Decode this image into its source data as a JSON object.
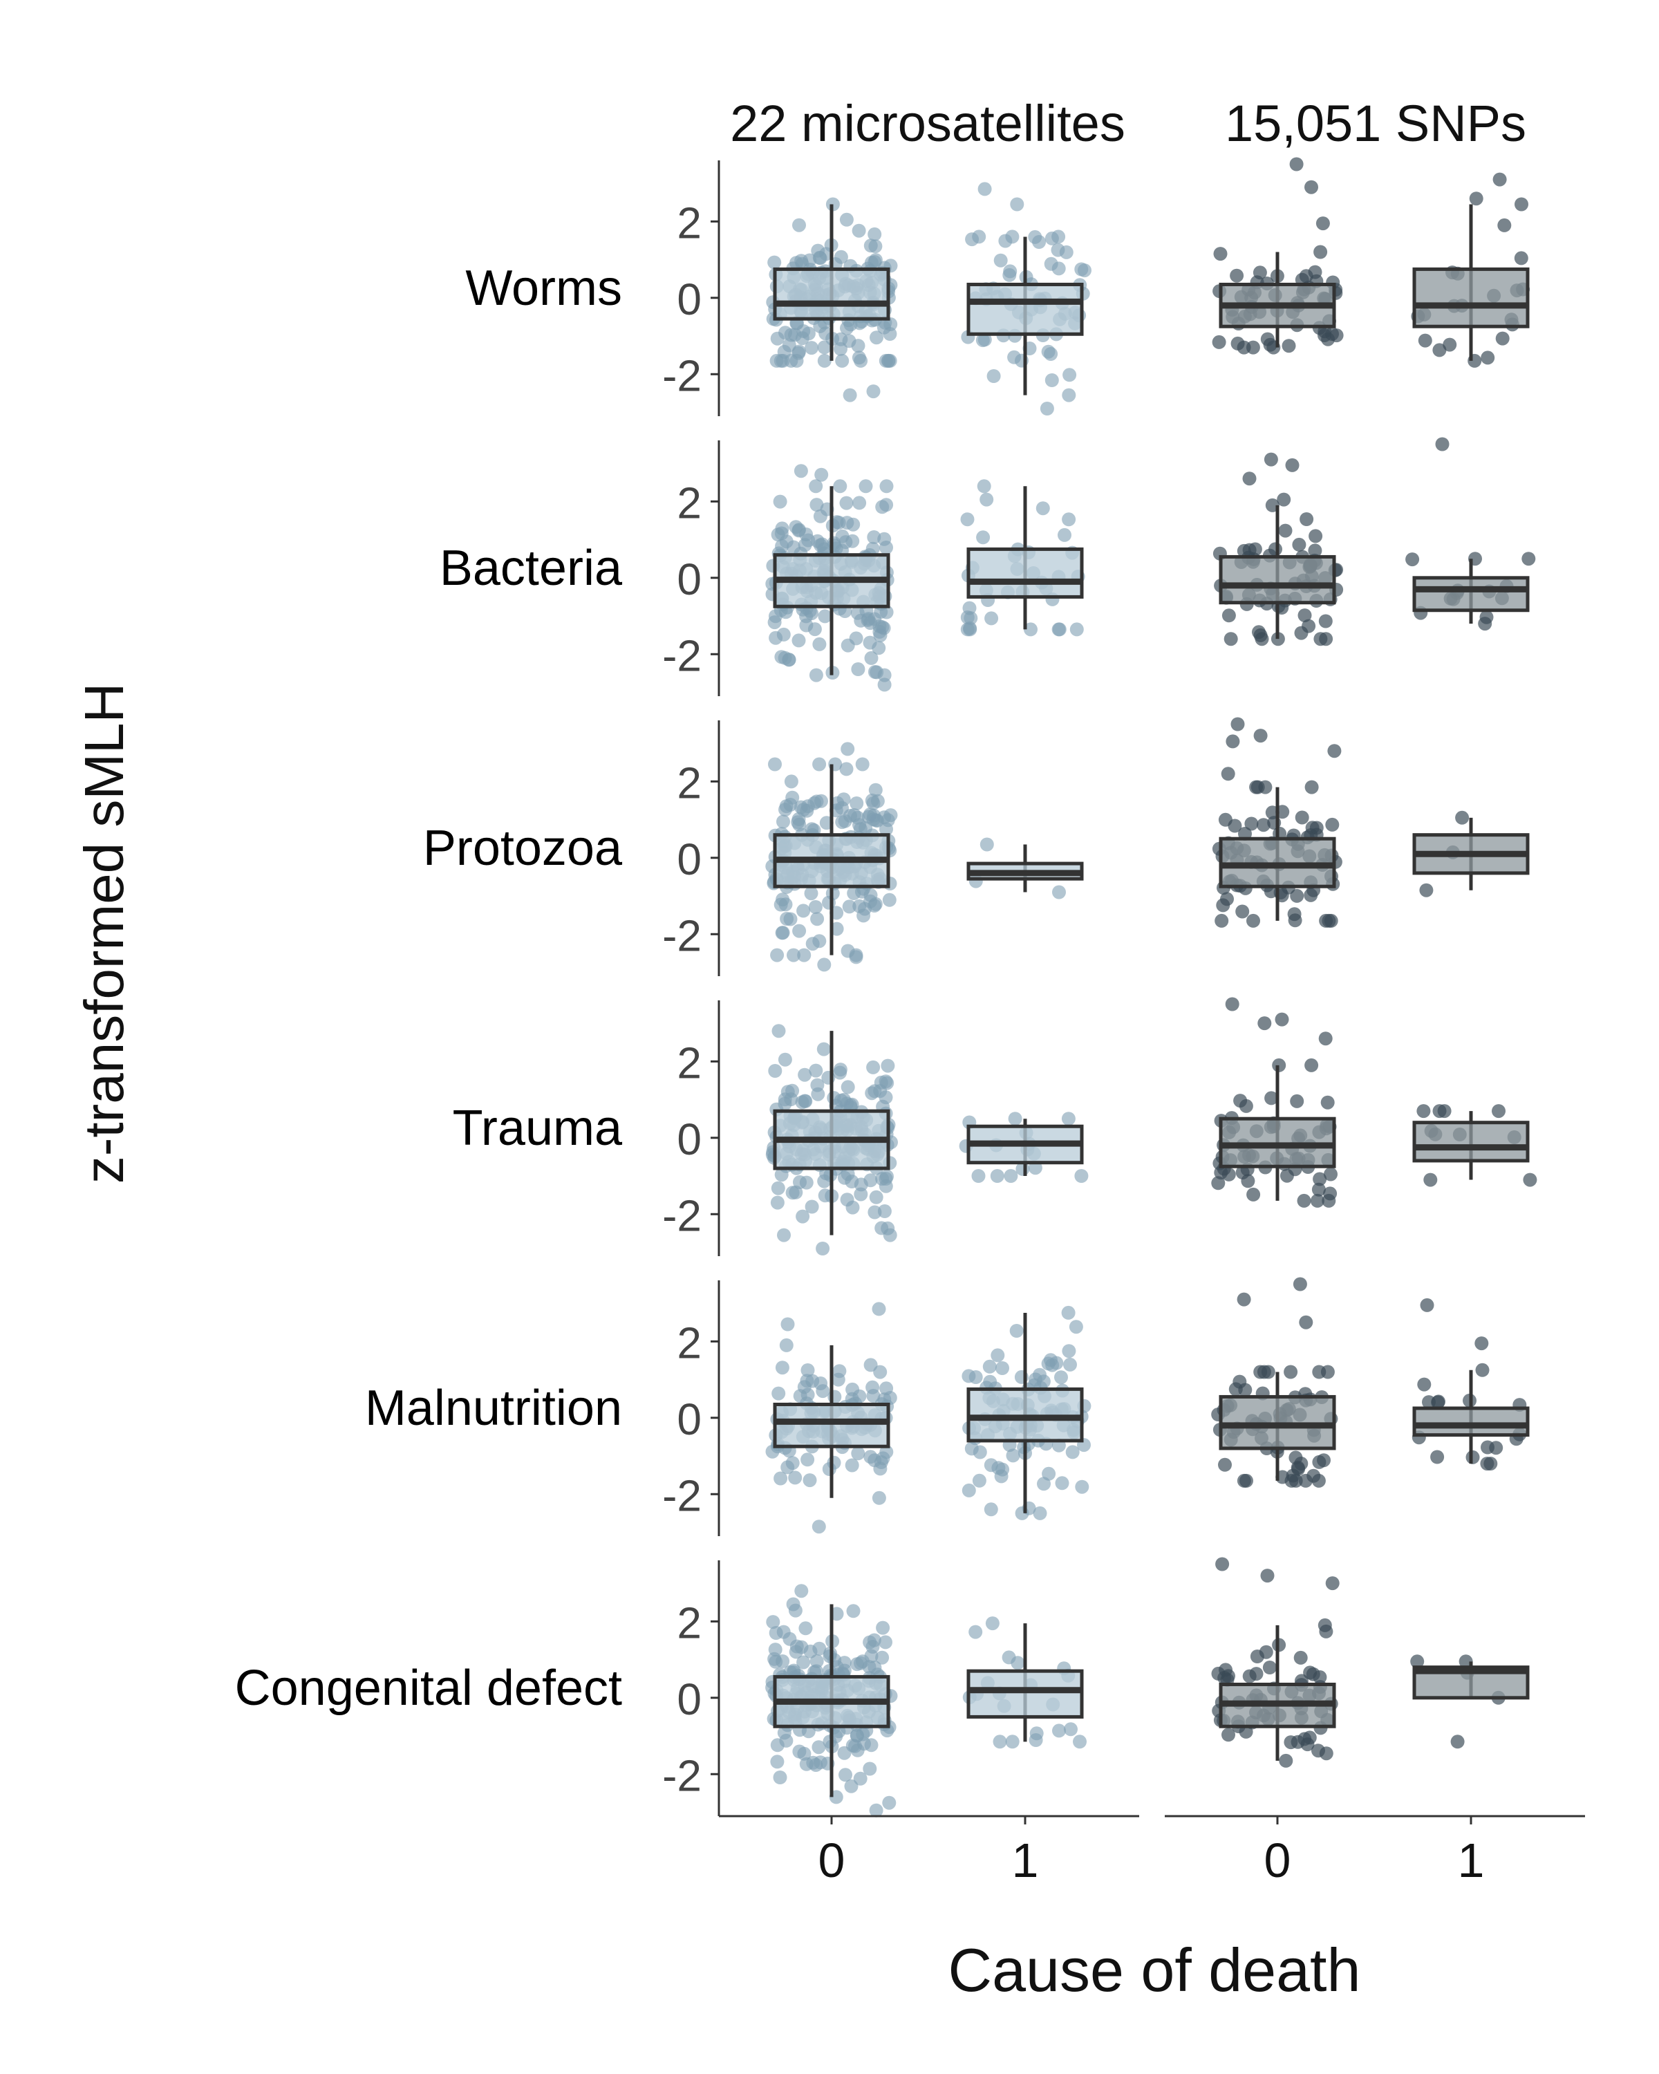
{
  "chart_data": {
    "type": "boxplot",
    "ylabel": "z-transformed sMLH",
    "xlabel": "Cause of death",
    "columns": [
      "22 microsatellites",
      "15,051 SNPs"
    ],
    "rows": [
      "Worms",
      "Bacteria",
      "Protozoa",
      "Trauma",
      "Malnutrition",
      "Congenital defect"
    ],
    "categories": [
      "0",
      "1"
    ],
    "ylim": [
      -3.1,
      3.6
    ],
    "yticks": [
      -2,
      0,
      2
    ],
    "ytick_labels": [
      "-2",
      "0",
      "2"
    ],
    "colors": {
      "microsatellites": "#7f9fb3",
      "snps": "#3a4a55",
      "box_line": "#333333"
    },
    "panels": [
      {
        "row": "Worms",
        "column": "22 microsatellites",
        "category": "0",
        "n": 160,
        "median": -0.15,
        "q1": -0.55,
        "q3": 0.75,
        "whisker_low": -1.65,
        "whisker_high": 2.45,
        "outliers": [
          -2.55,
          -2.45
        ]
      },
      {
        "row": "Worms",
        "column": "22 microsatellites",
        "category": "1",
        "n": 60,
        "median": -0.1,
        "q1": -0.95,
        "q3": 0.35,
        "whisker_low": -2.55,
        "whisker_high": 1.6,
        "outliers": [
          2.85,
          2.45,
          -2.9
        ]
      },
      {
        "row": "Worms",
        "column": "15,051 SNPs",
        "category": "0",
        "n": 55,
        "median": -0.2,
        "q1": -0.75,
        "q3": 0.35,
        "whisker_low": -1.3,
        "whisker_high": 1.2,
        "outliers": [
          3.5,
          2.9,
          1.95
        ]
      },
      {
        "row": "Worms",
        "column": "15,051 SNPs",
        "category": "1",
        "n": 22,
        "median": -0.2,
        "q1": -0.75,
        "q3": 0.75,
        "whisker_low": -1.65,
        "whisker_high": 2.45,
        "outliers": [
          3.1,
          2.6
        ]
      },
      {
        "row": "Bacteria",
        "column": "22 microsatellites",
        "category": "0",
        "n": 170,
        "median": -0.05,
        "q1": -0.75,
        "q3": 0.6,
        "whisker_low": -2.55,
        "whisker_high": 2.4,
        "outliers": [
          2.8,
          2.7,
          -2.8
        ]
      },
      {
        "row": "Bacteria",
        "column": "22 microsatellites",
        "category": "1",
        "n": 35,
        "median": -0.1,
        "q1": -0.5,
        "q3": 0.75,
        "whisker_low": -1.35,
        "whisker_high": 2.4,
        "outliers": []
      },
      {
        "row": "Bacteria",
        "column": "15,051 SNPs",
        "category": "0",
        "n": 65,
        "median": -0.2,
        "q1": -0.65,
        "q3": 0.55,
        "whisker_low": -1.6,
        "whisker_high": 1.9,
        "outliers": [
          3.1,
          2.95,
          2.6,
          2.05
        ]
      },
      {
        "row": "Bacteria",
        "column": "15,051 SNPs",
        "category": "1",
        "n": 14,
        "median": -0.3,
        "q1": -0.85,
        "q3": 0.0,
        "whisker_low": -1.2,
        "whisker_high": 0.5,
        "outliers": [
          3.5
        ]
      },
      {
        "row": "Protozoa",
        "column": "22 microsatellites",
        "category": "0",
        "n": 190,
        "median": -0.05,
        "q1": -0.75,
        "q3": 0.6,
        "whisker_low": -2.55,
        "whisker_high": 2.45,
        "outliers": [
          2.85,
          -2.6,
          -2.8
        ]
      },
      {
        "row": "Protozoa",
        "column": "22 microsatellites",
        "category": "1",
        "n": 3,
        "median": -0.4,
        "q1": -0.55,
        "q3": -0.15,
        "whisker_low": -0.9,
        "whisker_high": 0.35,
        "outliers": []
      },
      {
        "row": "Protozoa",
        "column": "15,051 SNPs",
        "category": "0",
        "n": 75,
        "median": -0.2,
        "q1": -0.75,
        "q3": 0.5,
        "whisker_low": -1.65,
        "whisker_high": 1.85,
        "outliers": [
          3.5,
          3.2,
          3.05,
          2.8,
          2.2
        ]
      },
      {
        "row": "Protozoa",
        "column": "15,051 SNPs",
        "category": "1",
        "n": 3,
        "median": 0.1,
        "q1": -0.4,
        "q3": 0.6,
        "whisker_low": -0.85,
        "whisker_high": 1.05,
        "outliers": []
      },
      {
        "row": "Trauma",
        "column": "22 microsatellites",
        "category": "0",
        "n": 180,
        "median": -0.05,
        "q1": -0.8,
        "q3": 0.7,
        "whisker_low": -2.55,
        "whisker_high": 2.8,
        "outliers": [
          -2.9
        ]
      },
      {
        "row": "Trauma",
        "column": "22 microsatellites",
        "category": "1",
        "n": 15,
        "median": -0.15,
        "q1": -0.65,
        "q3": 0.3,
        "whisker_low": -1.0,
        "whisker_high": 0.5,
        "outliers": []
      },
      {
        "row": "Trauma",
        "column": "15,051 SNPs",
        "category": "0",
        "n": 60,
        "median": -0.2,
        "q1": -0.75,
        "q3": 0.5,
        "whisker_low": -1.65,
        "whisker_high": 1.9,
        "outliers": [
          3.5,
          3.1,
          3.0,
          2.6
        ]
      },
      {
        "row": "Trauma",
        "column": "15,051 SNPs",
        "category": "1",
        "n": 10,
        "median": -0.25,
        "q1": -0.6,
        "q3": 0.4,
        "whisker_low": -1.1,
        "whisker_high": 0.7,
        "outliers": []
      },
      {
        "row": "Malnutrition",
        "column": "22 microsatellites",
        "category": "0",
        "n": 100,
        "median": -0.1,
        "q1": -0.75,
        "q3": 0.35,
        "whisker_low": -2.1,
        "whisker_high": 1.9,
        "outliers": [
          2.85,
          2.45,
          -2.85
        ]
      },
      {
        "row": "Malnutrition",
        "column": "22 microsatellites",
        "category": "1",
        "n": 90,
        "median": 0.0,
        "q1": -0.6,
        "q3": 0.75,
        "whisker_low": -2.5,
        "whisker_high": 2.75,
        "outliers": [
          -2.4
        ]
      },
      {
        "row": "Malnutrition",
        "column": "15,051 SNPs",
        "category": "0",
        "n": 60,
        "median": -0.2,
        "q1": -0.8,
        "q3": 0.55,
        "whisker_low": -1.65,
        "whisker_high": 1.2,
        "outliers": [
          3.5,
          3.1,
          2.5
        ]
      },
      {
        "row": "Malnutrition",
        "column": "15,051 SNPs",
        "category": "1",
        "n": 18,
        "median": -0.2,
        "q1": -0.45,
        "q3": 0.25,
        "whisker_low": -1.2,
        "whisker_high": 1.25,
        "outliers": [
          2.95,
          1.95
        ]
      },
      {
        "row": "Congenital defect",
        "column": "22 microsatellites",
        "category": "0",
        "n": 190,
        "median": -0.1,
        "q1": -0.75,
        "q3": 0.55,
        "whisker_low": -2.6,
        "whisker_high": 2.45,
        "outliers": [
          2.8,
          -2.75,
          -2.95
        ]
      },
      {
        "row": "Congenital defect",
        "column": "22 microsatellites",
        "category": "1",
        "n": 20,
        "median": 0.2,
        "q1": -0.5,
        "q3": 0.7,
        "whisker_low": -1.15,
        "whisker_high": 1.95,
        "outliers": []
      },
      {
        "row": "Congenital defect",
        "column": "15,051 SNPs",
        "category": "0",
        "n": 60,
        "median": -0.15,
        "q1": -0.75,
        "q3": 0.35,
        "whisker_low": -1.65,
        "whisker_high": 1.9,
        "outliers": [
          3.5,
          3.2,
          3.0
        ]
      },
      {
        "row": "Congenital defect",
        "column": "15,051 SNPs",
        "category": "1",
        "n": 5,
        "median": 0.7,
        "q1": 0.0,
        "q3": 0.8,
        "whisker_low": 0.0,
        "whisker_high": 0.95,
        "outliers": [
          -1.15
        ]
      }
    ]
  }
}
